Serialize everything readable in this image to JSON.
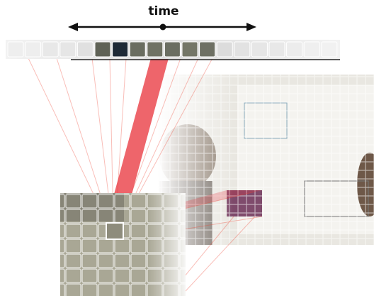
{
  "label": "time"
}
